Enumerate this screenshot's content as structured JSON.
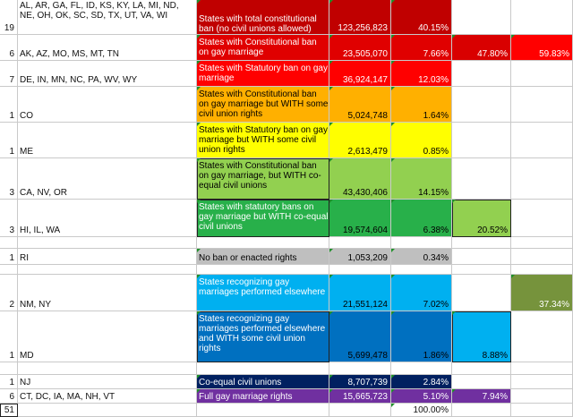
{
  "colors": {
    "dark_red": "#c00000",
    "red": "#e00000",
    "bright_red": "#ff0000",
    "orange": "#ffb000",
    "yellow": "#ffff00",
    "light_green": "#92d050",
    "green": "#28b04a",
    "gray": "#bfbfbf",
    "sky_blue": "#00b0f0",
    "blue": "#0070c0",
    "navy": "#002060",
    "purple": "#7030a0",
    "olive": "#76933c"
  },
  "rows": [
    {
      "count": "19",
      "states": "AL, AR, GA, FL, ID, KS, KY, LA, MI, ND, NE, OH, OK, SC, SD, TX, UT, VA, WI",
      "category": "States with total constitutional ban (no civil unions allowed)",
      "population": "123,256,823",
      "percent": "40.15%"
    },
    {
      "count": "6",
      "states": "AK, AZ, MO, MS, MT, TN",
      "category": "States with Constitutional ban on gay marriage",
      "population": "23,505,070",
      "percent": "7.66%",
      "subtotal1": "47.80%",
      "subtotal2": "59.83%"
    },
    {
      "count": "7",
      "states": "DE, IN, MN, NC, PA, WV, WY",
      "category": "States with Statutory ban on gay marriage",
      "population": "36,924,147",
      "percent": "12.03%"
    },
    {
      "count": "1",
      "states": "CO",
      "category": "States with Constitutional ban on gay marriage but WITH some civil union rights",
      "population": "5,024,748",
      "percent": "1.64%"
    },
    {
      "count": "1",
      "states": "ME",
      "category": "States with Statutory ban on gay marriage but WITH some civil union rights",
      "population": "2,613,479",
      "percent": "0.85%"
    },
    {
      "count": "3",
      "states": "CA, NV, OR",
      "category": "States with Constitutional ban on gay marriage, but WITH co-equal civil unions",
      "population": "43,430,406",
      "percent": "14.15%"
    },
    {
      "count": "3",
      "states": "HI, IL, WA",
      "category": "States with statutory bans on gay marriage but WITH co-equal civil unions",
      "population": "19,574,604",
      "percent": "6.38%",
      "subtotal1": "20.52%"
    },
    {
      "count": "1",
      "states": "RI",
      "category": "No ban or enacted rights",
      "population": "1,053,209",
      "percent": "0.34%"
    },
    {
      "count": "2",
      "states": "NM, NY",
      "category": "States recognizing gay marriages performed elsewhere",
      "population": "21,551,124",
      "percent": "7.02%",
      "subtotal2": "37.34%"
    },
    {
      "count": "1",
      "states": "MD",
      "category": "States recognizing gay marriages performed elsewhere and WITH some civil union rights",
      "population": "5,699,478",
      "percent": "1.86%",
      "subtotal1": "8.88%"
    },
    {
      "count": "1",
      "states": "NJ",
      "category": "Co-equal civil unions",
      "population": "8,707,739",
      "percent": "2.84%"
    },
    {
      "count": "6",
      "states": "CT, DC, IA, MA, NH, VT",
      "category": "Full gay marriage rights",
      "population": "15,665,723",
      "percent": "5.10%",
      "subtotal1": "7.94%"
    }
  ],
  "totals": {
    "count": "51",
    "percent": "100.00%"
  }
}
